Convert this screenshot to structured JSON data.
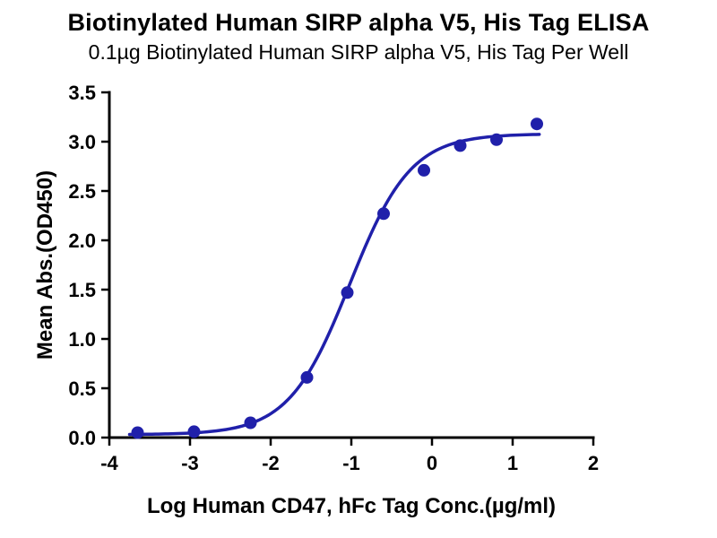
{
  "chart_data": {
    "type": "scatter",
    "title": "Biotinylated Human SIRP alpha V5, His Tag ELISA",
    "subtitle": "0.1µg Biotinylated Human SIRP alpha V5, His Tag Per Well",
    "xlabel": "Log Human CD47, hFc Tag Conc.(µg/ml)",
    "ylabel": "Mean Abs.(OD450)",
    "xlim": [
      -4,
      2
    ],
    "ylim": [
      0,
      3.5
    ],
    "x_ticks": [
      -4,
      -3,
      -2,
      -1,
      0,
      1,
      2
    ],
    "y_ticks": [
      0.0,
      0.5,
      1.0,
      1.5,
      2.0,
      2.5,
      3.0,
      3.5
    ],
    "grid": false,
    "legend": "none",
    "color": "#2020aa",
    "axis_color": "#000000",
    "points": {
      "x": [
        -3.65,
        -2.95,
        -2.25,
        -1.55,
        -1.05,
        -0.6,
        -0.1,
        0.35,
        0.8,
        1.3
      ],
      "y": [
        0.05,
        0.06,
        0.15,
        0.61,
        1.47,
        2.27,
        2.71,
        2.96,
        3.02,
        3.18
      ]
    },
    "curve_fit": {
      "model": "4PL-sigmoid",
      "bottom": 0.03,
      "top": 3.08,
      "logEC50": -1.02,
      "hill": 1.15,
      "x_start": -3.75,
      "x_end": 1.33
    }
  }
}
